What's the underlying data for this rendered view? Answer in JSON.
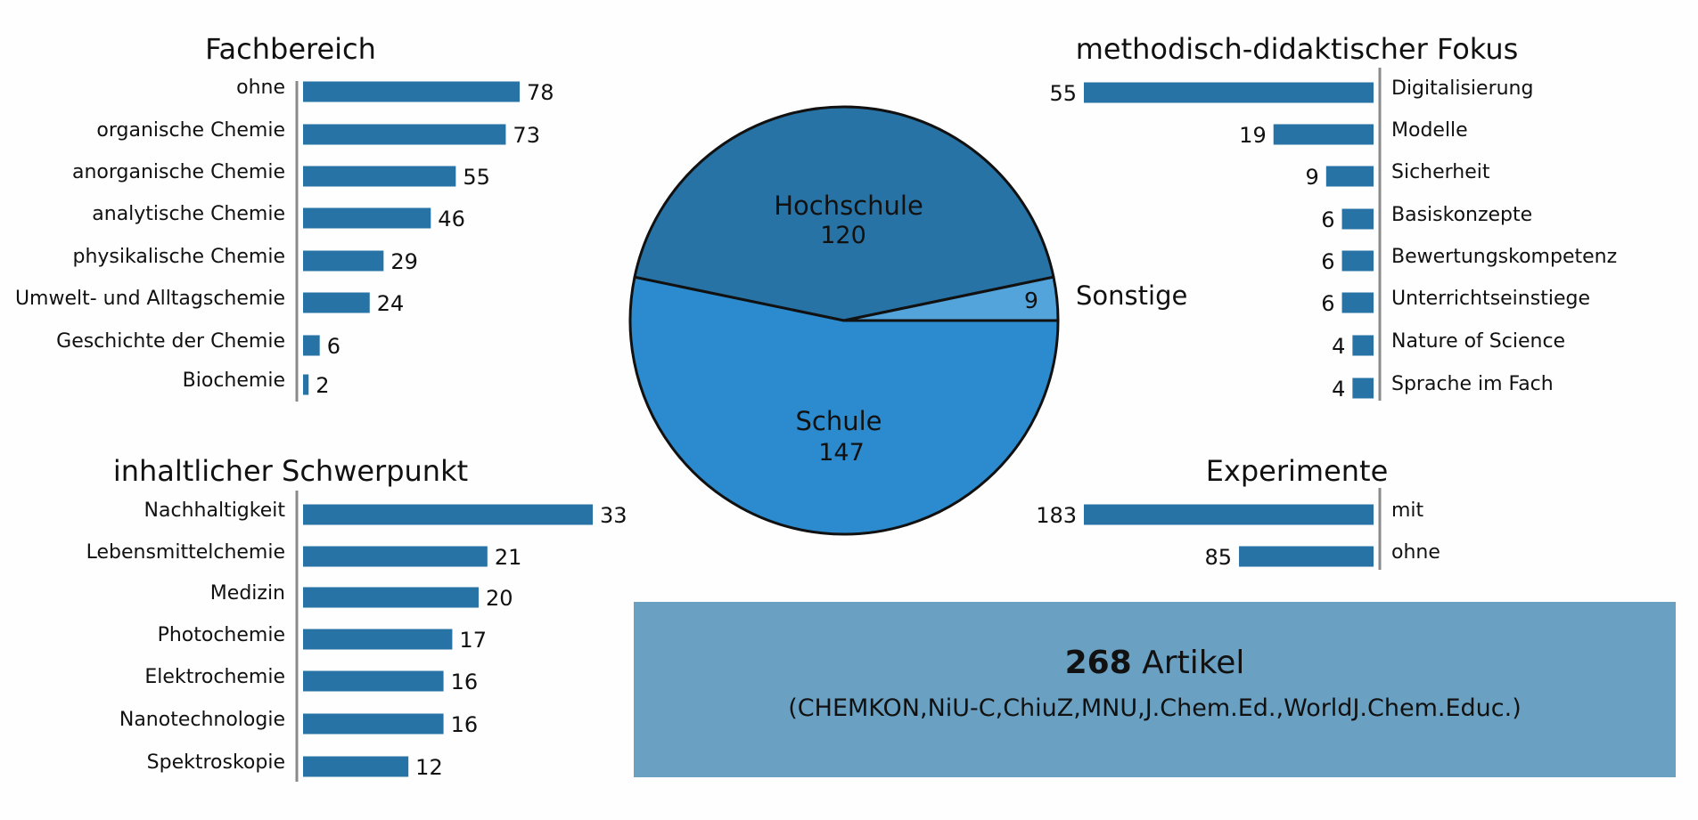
{
  "colors": {
    "bar": "#2873a6",
    "axis": "#8a8a8a",
    "pie_hochschule": "#2873a6",
    "pie_schule": "#2b8bce",
    "pie_sonstige": "#54a4dc",
    "summary_box": "#6aa0c2"
  },
  "chart_data": [
    {
      "type": "bar",
      "orientation": "horizontal",
      "title": "Fachbereich",
      "categories": [
        "ohne",
        "organische Chemie",
        "anorganische Chemie",
        "analytische Chemie",
        "physikalische Chemie",
        "Umwelt- und Alltagschemie",
        "Geschichte der Chemie",
        "Biochemie"
      ],
      "values": [
        78,
        73,
        55,
        46,
        29,
        24,
        6,
        2
      ],
      "axis_side": "left"
    },
    {
      "type": "bar",
      "orientation": "horizontal",
      "title": "inhaltlicher Schwerpunkt",
      "categories": [
        "Nachhaltigkeit",
        "Lebensmittelchemie",
        "Medizin",
        "Photochemie",
        "Elektrochemie",
        "Nanotechnologie",
        "Spektroskopie"
      ],
      "values": [
        33,
        21,
        20,
        17,
        16,
        16,
        12
      ],
      "axis_side": "left"
    },
    {
      "type": "bar",
      "orientation": "horizontal",
      "title": "methodisch-didaktischer Fokus",
      "categories": [
        "Digitalisierung",
        "Modelle",
        "Sicherheit",
        "Basiskonzepte",
        "Bewertungskompetenz",
        "Unterrichtseinstiege",
        "Nature of Science",
        "Sprache im Fach"
      ],
      "values": [
        55,
        19,
        9,
        6,
        6,
        6,
        4,
        4
      ],
      "axis_side": "right"
    },
    {
      "type": "bar",
      "orientation": "horizontal",
      "title": "Experimente",
      "categories": [
        "mit",
        "ohne"
      ],
      "values": [
        183,
        85
      ],
      "axis_side": "right"
    },
    {
      "type": "pie",
      "title": "",
      "slices": [
        {
          "label": "Hochschule",
          "value": 120
        },
        {
          "label": "Sonstige",
          "value": 9
        },
        {
          "label": "Schule",
          "value": 147
        }
      ]
    }
  ],
  "summary": {
    "count": "268",
    "label": "Artikel",
    "sources": "(CHEMKON,NiU-C,ChiuZ,MNU,J.Chem.Ed.,WorldJ.Chem.Educ.)"
  }
}
